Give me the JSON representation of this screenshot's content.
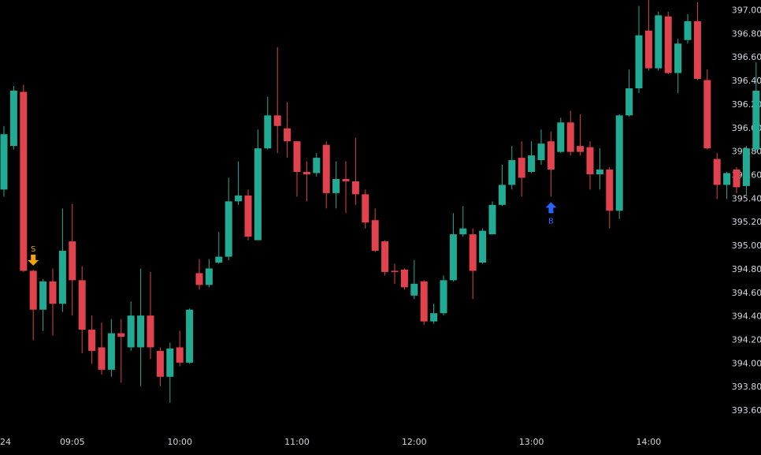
{
  "chart_data": {
    "type": "candlestick",
    "up_color": "#22ab94",
    "down_color": "#e0424e",
    "categories": [
      "24",
      null,
      null,
      null,
      null,
      null,
      null,
      "09:05",
      null,
      null,
      null,
      null,
      null,
      null,
      null,
      null,
      null,
      null,
      "10:00",
      null,
      null,
      null,
      null,
      null,
      null,
      null,
      null,
      null,
      null,
      null,
      "11:00",
      null,
      null,
      null,
      null,
      null,
      null,
      null,
      null,
      null,
      null,
      null,
      "12:00",
      null,
      null,
      null,
      null,
      null,
      null,
      null,
      null,
      null,
      null,
      null,
      "13:00",
      null,
      null,
      null,
      null,
      null,
      null,
      null,
      null,
      null,
      null,
      null,
      "14:00",
      null,
      null,
      null,
      null,
      null,
      null,
      null,
      null,
      null,
      null,
      null
    ],
    "open": [
      395.48,
      395.85,
      396.31,
      394.79,
      394.46,
      394.7,
      394.51,
      395.04,
      394.71,
      394.29,
      394.14,
      393.95,
      394.26,
      394.14,
      394.14,
      394.41,
      394.11,
      393.89,
      394.14,
      394.01,
      394.77,
      394.67,
      394.86,
      394.91,
      395.38,
      395.43,
      395.05,
      395.83,
      396.11,
      396.0,
      395.89,
      395.63,
      395.62,
      395.86,
      395.45,
      395.57,
      395.55,
      395.44,
      395.22,
      395.04,
      394.79,
      394.8,
      394.58,
      394.7,
      394.36,
      394.43,
      394.71,
      395.1,
      395.1,
      394.86,
      395.1,
      395.35,
      395.52,
      395.75,
      395.63,
      395.73,
      395.89,
      395.8,
      396.05,
      395.85,
      395.84,
      395.61,
      395.65,
      395.3,
      396.11,
      396.34,
      396.83,
      396.51,
      396.95,
      396.47,
      396.75,
      396.91,
      396.41,
      395.74,
      395.52,
      395.65,
      395.51,
      395.82
    ],
    "high": [
      396.02,
      396.36,
      396.37,
      394.8,
      394.72,
      394.81,
      395.32,
      395.36,
      394.83,
      394.41,
      394.35,
      394.38,
      394.38,
      394.53,
      394.81,
      394.78,
      394.14,
      394.18,
      394.28,
      394.47,
      394.89,
      394.89,
      395.12,
      395.58,
      395.72,
      395.48,
      395.99,
      396.27,
      396.69,
      396.22,
      395.89,
      395.72,
      395.79,
      395.89,
      395.72,
      395.72,
      395.92,
      395.48,
      395.32,
      395.05,
      394.85,
      394.81,
      394.88,
      394.71,
      394.51,
      394.75,
      395.28,
      395.34,
      395.15,
      395.15,
      395.38,
      395.69,
      395.85,
      395.89,
      395.89,
      395.99,
      395.97,
      396.09,
      396.15,
      396.12,
      395.89,
      395.83,
      395.67,
      396.12,
      396.5,
      397.04,
      397.09,
      396.99,
      396.99,
      396.76,
      396.97,
      397.07,
      396.5,
      395.79,
      395.63,
      395.67,
      395.85,
      396.56
    ],
    "low": [
      395.42,
      395.82,
      394.78,
      394.2,
      394.28,
      394.24,
      394.44,
      394.41,
      394.09,
      394.0,
      393.91,
      393.89,
      393.84,
      394.11,
      393.81,
      394.04,
      393.81,
      393.67,
      393.98,
      394.0,
      394.63,
      394.65,
      394.85,
      394.88,
      395.35,
      395.05,
      395.05,
      395.82,
      395.79,
      395.75,
      395.42,
      395.38,
      395.59,
      395.32,
      395.32,
      395.28,
      395.35,
      395.15,
      394.95,
      394.75,
      394.68,
      394.63,
      394.55,
      394.33,
      394.34,
      394.41,
      394.7,
      395.08,
      394.55,
      394.85,
      395.1,
      395.34,
      395.48,
      395.42,
      395.62,
      395.69,
      395.42,
      395.79,
      395.77,
      395.77,
      395.48,
      395.48,
      395.15,
      395.23,
      396.1,
      396.3,
      396.49,
      396.49,
      396.46,
      396.3,
      396.72,
      396.41,
      395.82,
      395.4,
      395.4,
      395.45,
      395.43,
      395.79
    ],
    "close": [
      395.95,
      396.32,
      394.79,
      394.46,
      394.7,
      394.51,
      394.96,
      394.71,
      394.29,
      394.11,
      393.95,
      394.26,
      394.23,
      394.41,
      394.41,
      394.14,
      393.89,
      394.13,
      394.01,
      394.46,
      394.67,
      394.81,
      394.91,
      395.38,
      395.43,
      395.08,
      395.83,
      396.11,
      396.02,
      395.89,
      395.63,
      395.61,
      395.75,
      395.45,
      395.57,
      395.55,
      395.44,
      395.2,
      394.96,
      394.78,
      394.78,
      394.65,
      394.68,
      394.36,
      394.43,
      394.71,
      395.1,
      395.15,
      394.79,
      395.13,
      395.35,
      395.52,
      395.73,
      395.58,
      395.77,
      395.87,
      395.65,
      396.05,
      395.8,
      395.8,
      395.61,
      395.65,
      395.3,
      396.11,
      396.34,
      396.79,
      396.51,
      396.96,
      396.47,
      396.72,
      396.91,
      396.42,
      395.83,
      395.52,
      395.62,
      395.5,
      395.83,
      396.32
    ],
    "ylim": [
      393.44,
      397.09
    ],
    "yticks": [
      {
        "value": 393.6,
        "label": "393.60"
      },
      {
        "value": 393.8,
        "label": "393.80"
      },
      {
        "value": 394.0,
        "label": "394.00"
      },
      {
        "value": 394.2,
        "label": "394.20"
      },
      {
        "value": 394.4,
        "label": "394.40"
      },
      {
        "value": 394.6,
        "label": "394.60"
      },
      {
        "value": 394.8,
        "label": "394.80"
      },
      {
        "value": 395.0,
        "label": "395.00"
      },
      {
        "value": 395.2,
        "label": "395.20"
      },
      {
        "value": 395.4,
        "label": "395.40"
      },
      {
        "value": 395.6,
        "label": "395.60"
      },
      {
        "value": 395.8,
        "label": "395.80"
      },
      {
        "value": 396.0,
        "label": "396.00"
      },
      {
        "value": 396.2,
        "label": "396.20"
      },
      {
        "value": 396.4,
        "label": "396.40"
      },
      {
        "value": 396.6,
        "label": "396.60"
      },
      {
        "value": 396.8,
        "label": "396.80"
      },
      {
        "value": 397.0,
        "label": "397.00"
      }
    ],
    "grid": false,
    "annotations": [
      {
        "text": "S",
        "at": 3,
        "side": "sell",
        "color": "#f0a30a"
      },
      {
        "text": "B",
        "at": 56,
        "side": "buy",
        "color": "#2962ff"
      }
    ]
  }
}
